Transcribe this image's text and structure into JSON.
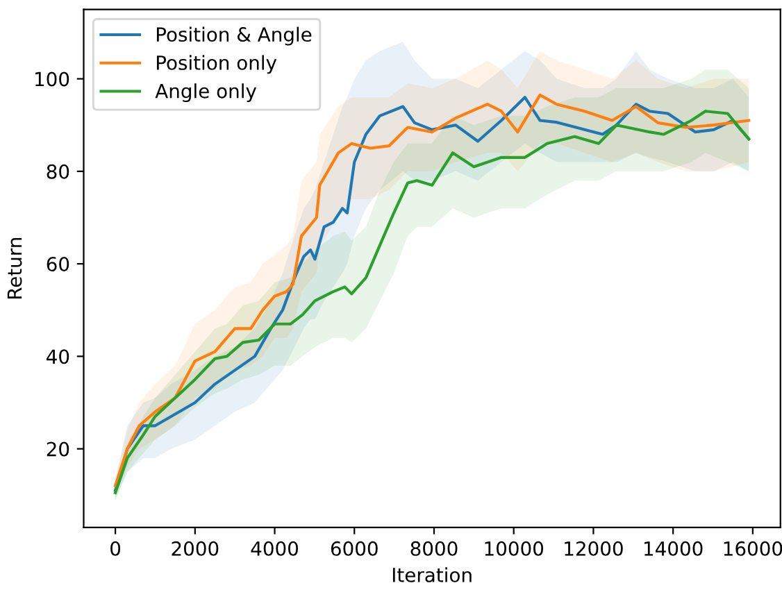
{
  "chart_data": {
    "type": "line",
    "xlabel": "Iteration",
    "ylabel": "Return",
    "xlim": [
      -795,
      16695
    ],
    "xticks": [
      0,
      2000,
      4000,
      6000,
      8000,
      10000,
      12000,
      14000,
      16000
    ],
    "ylim": [
      3,
      115
    ],
    "yticks": [
      20,
      40,
      60,
      80,
      100
    ],
    "grid": false,
    "legend": "top left",
    "marker": "none",
    "line_style": "solid",
    "series": [
      {
        "name": "Position & Angle",
        "color": "#1f77b4",
        "x": [
          0,
          300,
          700,
          1000,
          1400,
          2000,
          2500,
          3000,
          3500,
          3900,
          4200,
          4500,
          4730,
          4900,
          5010,
          5240,
          5470,
          5700,
          5820,
          6000,
          6290,
          6640,
          7220,
          7510,
          7950,
          8540,
          9100,
          9690,
          10280,
          10660,
          11080,
          11780,
          12230,
          12580,
          13070,
          13410,
          13870,
          14560,
          15020,
          15500,
          15900
        ],
        "values": [
          11,
          20,
          25,
          25,
          27,
          30,
          34,
          37,
          40,
          46,
          50,
          57,
          61.6,
          63,
          61,
          68,
          69,
          72,
          71,
          82,
          88,
          92,
          94,
          90.5,
          89,
          90,
          86.5,
          91,
          96,
          91,
          90.6,
          89,
          88,
          90,
          94.5,
          93,
          92.5,
          88.5,
          89,
          91,
          87
        ],
        "lower": [
          9,
          15,
          18,
          18,
          20,
          22,
          25,
          28,
          30,
          34,
          37,
          42,
          46,
          48,
          48,
          52,
          55,
          58,
          60,
          66,
          72,
          76,
          80,
          78,
          78,
          80,
          78,
          82,
          86,
          84,
          82,
          82,
          82,
          82,
          84,
          83,
          82,
          80,
          80,
          82,
          80
        ],
        "upper": [
          13,
          25,
          30,
          31,
          34,
          37,
          40,
          42,
          46,
          52,
          58,
          66,
          72,
          74,
          76,
          82,
          88,
          94,
          96,
          100,
          104,
          106,
          108,
          104,
          100,
          100,
          98,
          102,
          106,
          104,
          100,
          98,
          98,
          100,
          106,
          102,
          100,
          98,
          98,
          100,
          96
        ]
      },
      {
        "name": "Position only",
        "color": "#ff7f0e",
        "x": [
          0,
          300,
          600,
          1000,
          1500,
          2000,
          2500,
          3000,
          3400,
          3700,
          4000,
          4300,
          4460,
          4670,
          5050,
          5130,
          5600,
          5930,
          6400,
          6870,
          7340,
          7950,
          8540,
          9340,
          9690,
          10100,
          10660,
          11080,
          11780,
          12470,
          13070,
          13620,
          14320,
          15020,
          15900
        ],
        "values": [
          12,
          20,
          25,
          28,
          31,
          39,
          41,
          46,
          46,
          50,
          53,
          54,
          55.6,
          66,
          70,
          77,
          84,
          86,
          85,
          85.5,
          89.5,
          88.5,
          91.5,
          94.5,
          93,
          88.5,
          96.5,
          94.5,
          93,
          91,
          94,
          90.5,
          89.5,
          90,
          91
        ],
        "lower": [
          10,
          16,
          20,
          22,
          25,
          31,
          33,
          37,
          38,
          40,
          44,
          44,
          46,
          54,
          58,
          64,
          70,
          74,
          74,
          76,
          80,
          80,
          82,
          84,
          84,
          80,
          86,
          86,
          84,
          82,
          84,
          82,
          80,
          80,
          82
        ],
        "upper": [
          14,
          24,
          30,
          34,
          38,
          47,
          50,
          55,
          56,
          60,
          62,
          64,
          66,
          78,
          82,
          88,
          94,
          96,
          96,
          96,
          99,
          98,
          100,
          104,
          102,
          98,
          106,
          104,
          102,
          100,
          104,
          100,
          98,
          100,
          100
        ]
      },
      {
        "name": "Angle only",
        "color": "#2ca02c",
        "x": [
          0,
          300,
          700,
          1000,
          1500,
          2000,
          2500,
          2800,
          3200,
          3600,
          4000,
          4400,
          4700,
          5010,
          5470,
          5760,
          5930,
          6290,
          6640,
          6990,
          7340,
          7570,
          7950,
          8470,
          9000,
          9690,
          10280,
          10840,
          11530,
          12130,
          12580,
          13410,
          13760,
          14460,
          14810,
          15370,
          15900
        ],
        "values": [
          10.5,
          18,
          23,
          27,
          31,
          35,
          39.5,
          40,
          43,
          43.5,
          47,
          47,
          49,
          52,
          54,
          55,
          53.5,
          57,
          64,
          71,
          77.5,
          78,
          77,
          84,
          81,
          83,
          83,
          86,
          87.5,
          86,
          90,
          88.5,
          88,
          91,
          93,
          92.5,
          87
        ],
        "lower": [
          9,
          15,
          19,
          22,
          25,
          29,
          32,
          33,
          35,
          36,
          38,
          38,
          40,
          42,
          44,
          44,
          43,
          46,
          52,
          58,
          66,
          68,
          68,
          72,
          70,
          72,
          72,
          75,
          78,
          78,
          80,
          80,
          80,
          82,
          84,
          82,
          80
        ],
        "upper": [
          12,
          21,
          27,
          31,
          36,
          41,
          46,
          47,
          51,
          52,
          56,
          57,
          60,
          63,
          66,
          67,
          65,
          68,
          76,
          82,
          86,
          86,
          86,
          92,
          90,
          92,
          92,
          94,
          96,
          96,
          98,
          98,
          98,
          100,
          102,
          102,
          98
        ]
      }
    ]
  }
}
